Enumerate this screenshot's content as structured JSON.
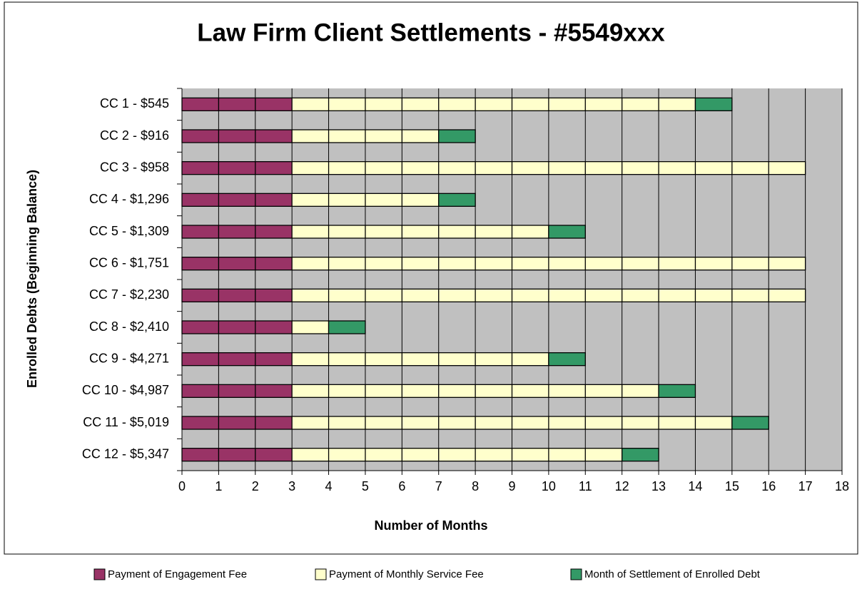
{
  "chart_data": {
    "type": "bar",
    "orientation": "horizontal",
    "stacked": true,
    "title": "Law Firm Client Settlements - #5549xxx",
    "x_label": "Number of Months",
    "y_label": "Enrolled Debts (Beginning Balance)",
    "categories": [
      "CC 1 - $545",
      "CC 2 - $916",
      "CC 3 - $958",
      "CC 4 - $1,296",
      "CC 5 - $1,309",
      "CC 6 - $1,751",
      "CC 7 - $2,230",
      "CC 8 - $2,410",
      "CC 9 - $4,271",
      "CC 10 - $4,987",
      "CC 11 - $5,019",
      "CC 12 - $5,347"
    ],
    "series": [
      {
        "name": "Payment of Engagement Fee",
        "color": "#993366",
        "values": [
          3,
          3,
          3,
          3,
          3,
          3,
          3,
          3,
          3,
          3,
          3,
          3
        ]
      },
      {
        "name": "Payment of Monthly Service Fee",
        "color": "#ffffcc",
        "values": [
          11,
          4,
          14,
          4,
          7,
          14,
          14,
          1,
          7,
          10,
          12,
          9
        ]
      },
      {
        "name": "Month of Settlement of Enrolled Debt",
        "color": "#339966",
        "values": [
          1,
          1,
          0,
          1,
          1,
          0,
          0,
          1,
          1,
          1,
          1,
          1
        ]
      }
    ],
    "xlim": [
      0,
      18
    ],
    "xticks": [
      0,
      1,
      2,
      3,
      4,
      5,
      6,
      7,
      8,
      9,
      10,
      11,
      12,
      13,
      14,
      15,
      16,
      17,
      18
    ],
    "grid": true,
    "plot_background": "#c0c0c0",
    "legend": "bottom"
  }
}
